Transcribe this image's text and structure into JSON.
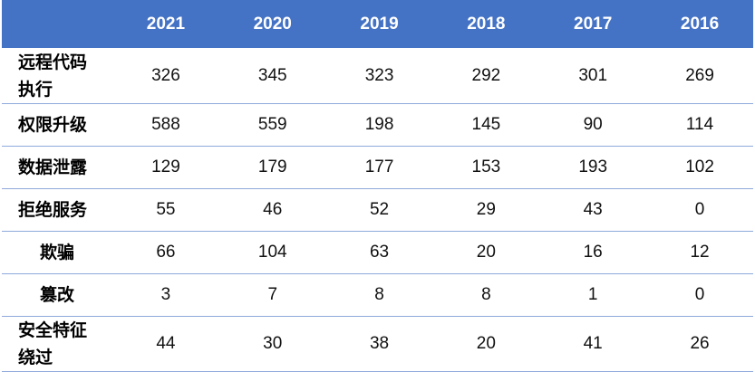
{
  "table": {
    "corner": "",
    "years": [
      "2021",
      "2020",
      "2019",
      "2018",
      "2017",
      "2016"
    ],
    "rows": [
      {
        "label": "远程代码执行",
        "values": [
          "326",
          "345",
          "323",
          "292",
          "301",
          "269"
        ]
      },
      {
        "label": "权限升级",
        "values": [
          "588",
          "559",
          "198",
          "145",
          "90",
          "114"
        ]
      },
      {
        "label": "数据泄露",
        "values": [
          "129",
          "179",
          "177",
          "153",
          "193",
          "102"
        ]
      },
      {
        "label": "拒绝服务",
        "values": [
          "55",
          "46",
          "52",
          "29",
          "43",
          "0"
        ]
      },
      {
        "label": "欺骗",
        "values": [
          "66",
          "104",
          "63",
          "20",
          "16",
          "12"
        ]
      },
      {
        "label": "篡改",
        "values": [
          "3",
          "7",
          "8",
          "8",
          "1",
          "0"
        ]
      },
      {
        "label": "安全特征绕过",
        "values": [
          "44",
          "30",
          "38",
          "20",
          "41",
          "26"
        ]
      }
    ]
  },
  "colors": {
    "header_bg": "#4472c4",
    "header_text": "#ffffff",
    "row_divider": "#8faadc"
  }
}
